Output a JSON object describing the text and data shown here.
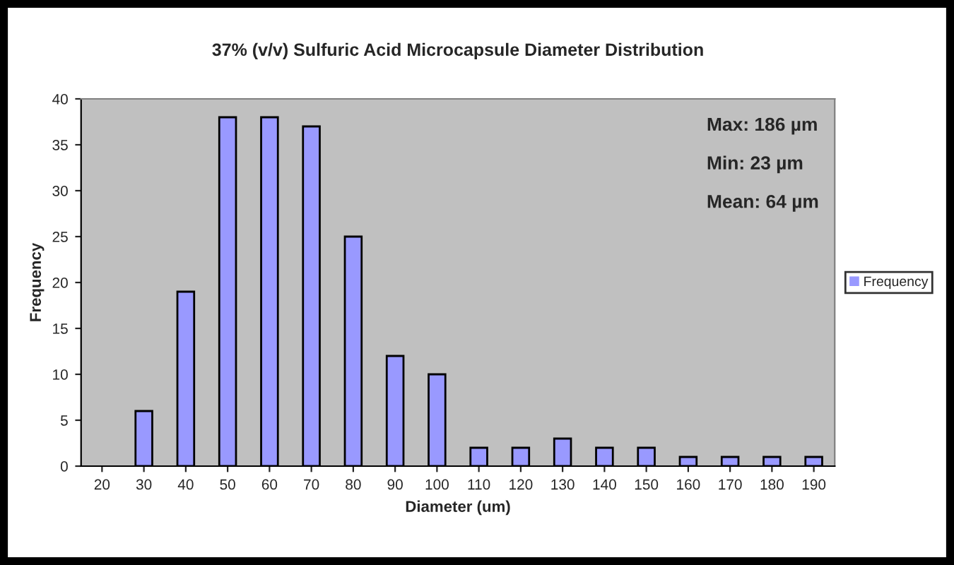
{
  "chart_data": {
    "type": "bar",
    "title": "37% (v/v) Sulfuric Acid Microcapsule Diameter Distribution",
    "xlabel": "Diameter (um)",
    "ylabel": "Frequency",
    "categories": [
      "20",
      "30",
      "40",
      "50",
      "60",
      "70",
      "80",
      "90",
      "100",
      "110",
      "120",
      "130",
      "140",
      "150",
      "160",
      "170",
      "180",
      "190"
    ],
    "series": [
      {
        "name": "Frequency",
        "color": "#9999ff",
        "values": [
          0,
          6,
          19,
          38,
          38,
          37,
          25,
          12,
          10,
          2,
          2,
          3,
          2,
          2,
          1,
          1,
          1,
          1
        ]
      }
    ],
    "ylim": [
      0,
      40
    ],
    "yticks": [
      0,
      5,
      10,
      15,
      20,
      25,
      30,
      35,
      40
    ],
    "grid": false,
    "legend": "right",
    "annotations": [
      "Max: 186 µm",
      "Min: 23 µm",
      "Mean: 64 µm"
    ]
  }
}
